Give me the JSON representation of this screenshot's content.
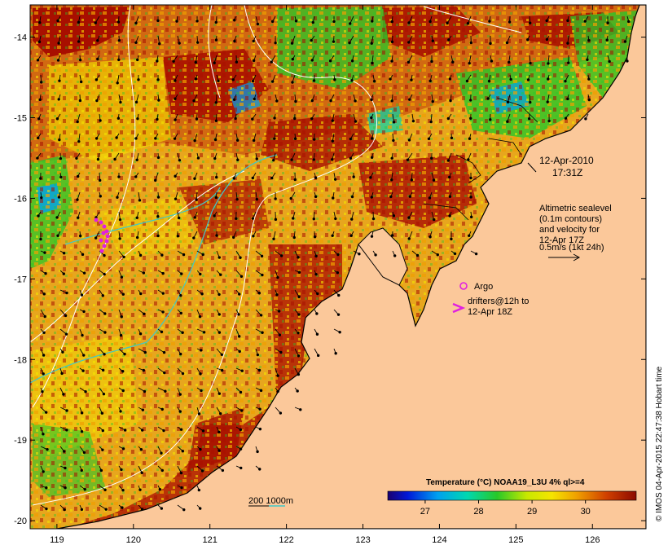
{
  "map": {
    "date_label": "12-Apr-2010",
    "time_label": "17:31Z",
    "altimetry_lines": [
      "Altimetric sealevel",
      "(0.1m contours)",
      "and velocity for",
      "12-Apr 17Z",
      "0.5m/s (1kt 24h)"
    ],
    "argo_label": "Argo",
    "drifters_lines": [
      "drifters@12h to",
      "12-Apr 18Z"
    ],
    "isobath_label": "200  1000m",
    "colorbar": {
      "title": "Temperature (°C) NOAA19_L3U 4% ql>=4",
      "ticks": [
        "27",
        "28",
        "29",
        "30"
      ],
      "tick_values": [
        27,
        28,
        29,
        30
      ],
      "range": [
        26.3,
        30.95
      ]
    },
    "credit": "© IMOS 04-Apr-2015 22:47:38 Hobart time",
    "x_axis": {
      "ticks": [
        "119",
        "120",
        "121",
        "122",
        "123",
        "124",
        "125",
        "126"
      ],
      "range": [
        118.65,
        126.7
      ]
    },
    "y_axis": {
      "ticks": [
        "-14",
        "-15",
        "-16",
        "-17",
        "-18",
        "-19",
        "-20"
      ],
      "range": [
        -20.1,
        -13.6
      ]
    },
    "colors": {
      "land": "#fbc89a",
      "sst_hot": "#a80f00",
      "sst_warm": "#f0a000",
      "sst_mid": "#f5e400",
      "sst_cool": "#28c828",
      "contour": "#ffffff",
      "isobath": "#40c8c8",
      "argo": "#e020e0",
      "drifters": "#e020e0"
    }
  }
}
